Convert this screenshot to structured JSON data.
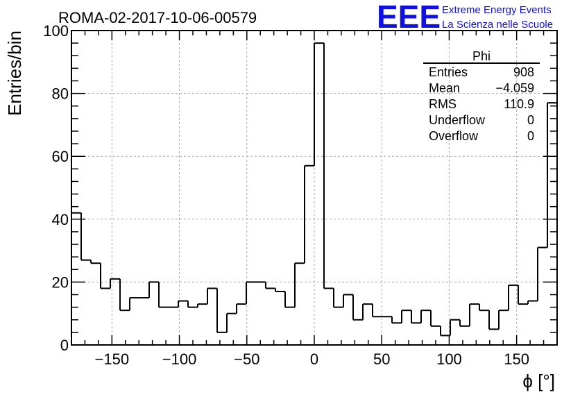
{
  "chart_data": {
    "type": "bar",
    "title": "ROMA-02-2017-10-06-00579",
    "xlabel": "ϕ [°]",
    "ylabel": "Entries/bin",
    "xlim": [
      -180,
      180
    ],
    "ylim": [
      0,
      100
    ],
    "bin_width": 7.2,
    "xticks": [
      -150,
      -100,
      -50,
      0,
      50,
      100,
      150
    ],
    "xtick_labels": [
      "−150",
      "−100",
      "−50",
      "0",
      "50",
      "100",
      "150"
    ],
    "yticks": [
      0,
      20,
      40,
      60,
      80,
      100
    ],
    "ytick_labels": [
      "0",
      "20",
      "40",
      "60",
      "80",
      "100"
    ],
    "grid": true,
    "values": [
      42,
      27,
      26,
      18,
      21,
      11,
      15,
      15,
      20,
      12,
      12,
      14,
      12,
      13,
      18,
      4,
      10,
      13,
      20,
      20,
      18,
      17,
      12,
      26,
      57,
      96,
      18,
      12,
      16,
      8,
      13,
      9,
      9,
      7,
      11,
      7,
      11,
      6,
      3,
      8,
      6,
      13,
      11,
      5,
      11,
      19,
      13,
      14,
      31,
      77
    ],
    "stats_box": {
      "name": "Phi",
      "rows": [
        {
          "label": "Entries",
          "value": "908"
        },
        {
          "label": "Mean",
          "value": "−4.059"
        },
        {
          "label": "RMS",
          "value": "110.9"
        },
        {
          "label": "Underflow",
          "value": "0"
        },
        {
          "label": "Overflow",
          "value": "0"
        }
      ]
    },
    "line_color": "#000000"
  },
  "logo": {
    "text": "EEE",
    "line1": "Extreme Energy Events",
    "line2": "La Scienza nelle Scuole",
    "color": "#1010e0"
  }
}
